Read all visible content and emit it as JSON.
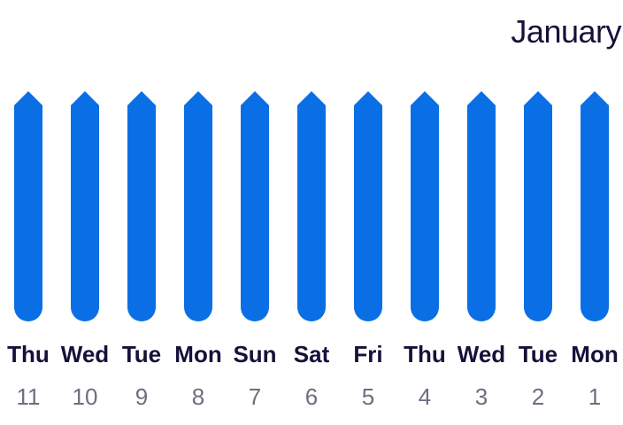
{
  "header": {
    "month": "January"
  },
  "colors": {
    "accent": "#0a6fe5",
    "weekday_text": "#14123a",
    "daynum_text": "#6e6e80"
  },
  "days": [
    {
      "weekday": "Thu",
      "day": "11"
    },
    {
      "weekday": "Wed",
      "day": "10"
    },
    {
      "weekday": "Tue",
      "day": "9"
    },
    {
      "weekday": "Mon",
      "day": "8"
    },
    {
      "weekday": "Sun",
      "day": "7"
    },
    {
      "weekday": "Sat",
      "day": "6"
    },
    {
      "weekday": "Fri",
      "day": "5"
    },
    {
      "weekday": "Thu",
      "day": "4"
    },
    {
      "weekday": "Wed",
      "day": "3"
    },
    {
      "weekday": "Tue",
      "day": "2"
    },
    {
      "weekday": "Mon",
      "day": "1"
    }
  ]
}
